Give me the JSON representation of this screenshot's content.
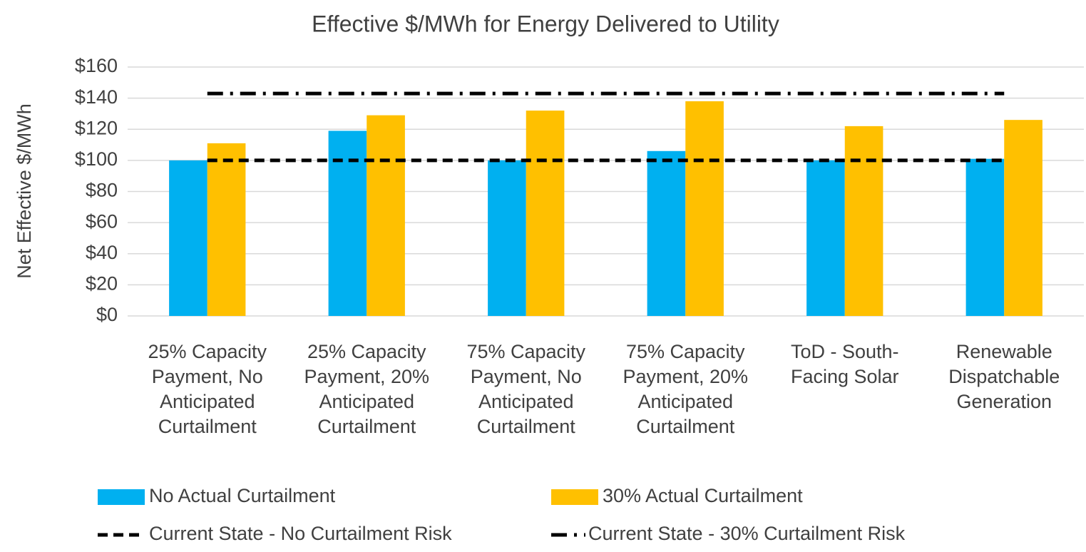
{
  "chart_data": {
    "type": "bar",
    "title": "Effective $/MWh for Energy Delivered to Utility",
    "y_label": "Net Effective $/MWh",
    "categories": [
      "25% Capacity Payment, No Anticipated Curtailment",
      "25% Capacity Payment, 20% Anticipated Curtailment",
      "75% Capacity Payment, No Anticipated Curtailment",
      "75% Capacity Payment, 20% Anticipated Curtailment",
      "ToD - South-Facing Solar",
      "Renewable Dispatchable Generation"
    ],
    "series": [
      {
        "name": "No Actual Curtailment",
        "type": "bar",
        "color": "#00b0f0",
        "values": [
          100,
          119,
          100,
          106,
          100,
          101
        ]
      },
      {
        "name": "30% Actual Curtailment",
        "type": "bar",
        "color": "#ffc000",
        "values": [
          111,
          129,
          132,
          138,
          122,
          126
        ]
      },
      {
        "name": "Current State - No Curtailment Risk",
        "type": "line",
        "dash": "dash",
        "color": "#000000",
        "values": [
          100,
          100,
          100,
          100,
          100,
          100
        ]
      },
      {
        "name": "Current State - 30% Curtailment Risk",
        "type": "line",
        "dash": "dashdot",
        "color": "#000000",
        "values": [
          143,
          143,
          143,
          143,
          143,
          143
        ]
      }
    ],
    "ylim": [
      0,
      160
    ],
    "yticks": [
      {
        "value": 0,
        "label": "$0"
      },
      {
        "value": 20,
        "label": "$20"
      },
      {
        "value": 40,
        "label": "$40"
      },
      {
        "value": 60,
        "label": "$60"
      },
      {
        "value": 80,
        "label": "$80"
      },
      {
        "value": 100,
        "label": "$100"
      },
      {
        "value": 120,
        "label": "$120"
      },
      {
        "value": 140,
        "label": "$140"
      },
      {
        "value": 160,
        "label": "$160"
      }
    ],
    "grid": true,
    "legend": "bottom"
  }
}
